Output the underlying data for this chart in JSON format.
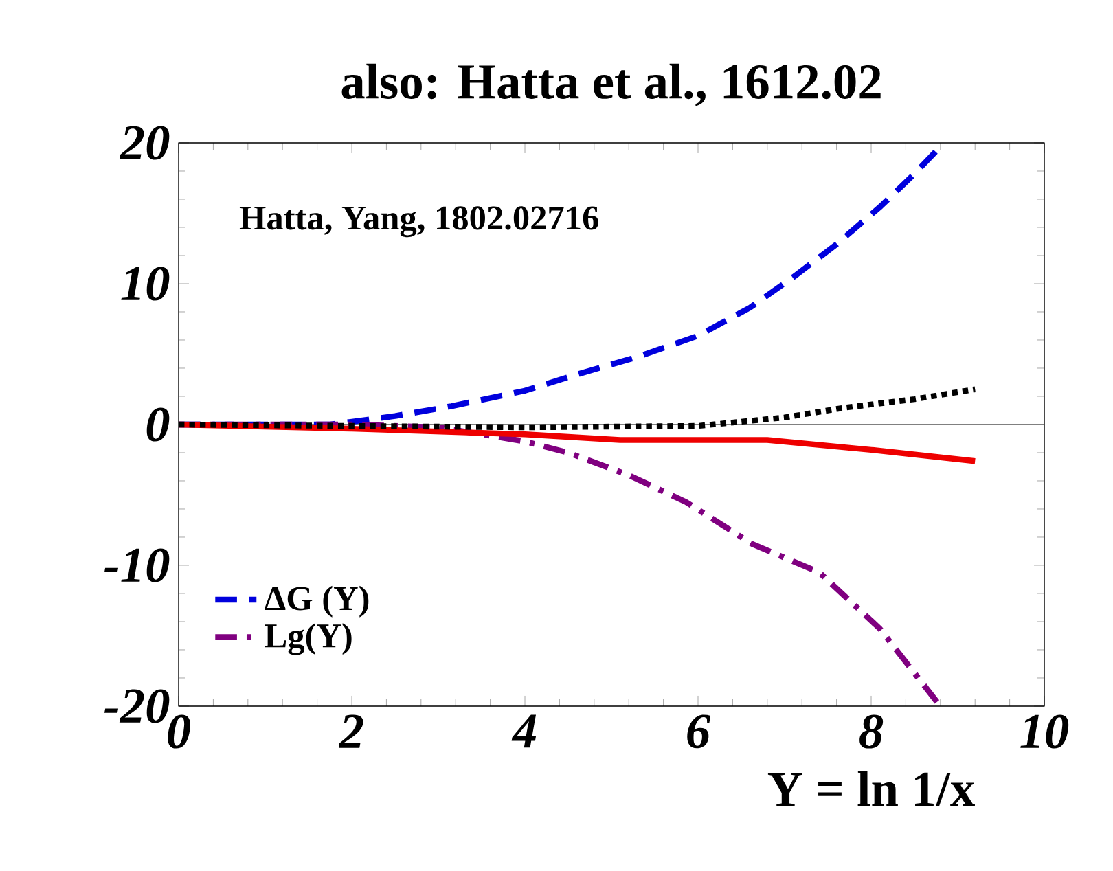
{
  "chart_data": {
    "type": "line",
    "title": "also: Hatta et al., 1612.02",
    "xlabel": "Y = ln 1/x",
    "annotations": [
      "Hatta, Yang, 1802.02716"
    ],
    "xlim": [
      0,
      10
    ],
    "ylim": [
      -20,
      20
    ],
    "xticks": [
      0,
      2,
      4,
      6,
      8,
      10
    ],
    "yticks": [
      -20,
      -10,
      0,
      10,
      20
    ],
    "grid": false,
    "legend": "bottom left",
    "marker": "none",
    "ref_lines": [
      {
        "axis": "y",
        "value": 0,
        "color": "#808080"
      }
    ],
    "series": [
      {
        "name": "ΔG (Y)",
        "color": "#0000dd",
        "line_style": "dashed",
        "x": [
          0,
          1,
          1.75,
          2.5,
          3.15,
          4,
          4.57,
          5.3,
          6,
          6.6,
          7.13,
          7.6,
          8.11,
          8.5,
          8.81
        ],
        "values": [
          0,
          0,
          0,
          0.6,
          1.3,
          2.4,
          3.5,
          4.8,
          6.3,
          8.3,
          10.6,
          12.8,
          15.5,
          17.8,
          19.8
        ]
      },
      {
        "name": "Lg(Y)",
        "color": "#800080",
        "line_style": "dashdot",
        "x": [
          0,
          1,
          2,
          3,
          4,
          4.5,
          5.2,
          5.86,
          6.63,
          7.4,
          8.1,
          8.76
        ],
        "values": [
          0,
          0,
          0,
          -0.2,
          -1.2,
          -2,
          -3.6,
          -5.5,
          -8.5,
          -10.5,
          -14.5,
          -19.7
        ]
      },
      {
        "color": "#ee0000",
        "line_style": "solid",
        "x": [
          0,
          2,
          4,
          5.1,
          6,
          6.8,
          8,
          9.2
        ],
        "values": [
          0,
          -0.3,
          -0.7,
          -1.1,
          -1.1,
          -1.1,
          -1.8,
          -2.6
        ]
      },
      {
        "color": "#000000",
        "line_style": "dotted",
        "x": [
          0,
          2,
          4,
          6,
          7,
          7.7,
          8.5,
          9.2
        ],
        "values": [
          0,
          -0.1,
          -0.2,
          -0.1,
          0.5,
          1.2,
          1.8,
          2.5
        ]
      }
    ]
  }
}
